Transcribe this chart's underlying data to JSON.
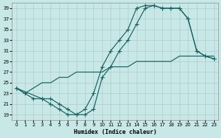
{
  "xlabel": "Humidex (Indice chaleur)",
  "ylabel": "",
  "bg_color": "#c8e8e8",
  "grid_color": "#b0c8c8",
  "line_color": "#1a6060",
  "xlim": [
    -0.5,
    23.5
  ],
  "ylim": [
    18,
    40
  ],
  "yticks": [
    19,
    21,
    23,
    25,
    27,
    29,
    31,
    33,
    35,
    37,
    39
  ],
  "xticks": [
    0,
    1,
    2,
    3,
    4,
    5,
    6,
    7,
    8,
    9,
    10,
    11,
    12,
    13,
    14,
    15,
    16,
    17,
    18,
    19,
    20,
    21,
    22,
    23
  ],
  "line1_x": [
    0,
    1,
    2,
    3,
    4,
    5,
    6,
    7,
    8,
    9,
    10,
    11,
    12,
    13,
    14,
    15,
    16,
    17,
    18,
    19,
    20,
    21,
    22,
    23
  ],
  "line1_y": [
    24,
    23,
    22,
    22,
    21,
    20,
    19,
    19,
    20,
    23,
    28,
    31,
    33,
    35,
    39,
    39.5,
    39.5,
    39,
    39,
    39,
    37,
    31,
    30,
    29.5
  ],
  "line2_x": [
    0,
    3,
    4,
    5,
    6,
    7,
    8,
    9,
    10,
    11,
    12,
    13,
    14,
    15,
    16,
    17,
    18,
    19,
    20,
    21,
    22,
    23
  ],
  "line2_y": [
    24,
    22,
    22,
    21,
    20,
    19,
    19,
    20,
    26,
    28,
    31,
    33,
    36,
    39,
    39.5,
    39,
    39,
    39,
    37,
    31,
    30,
    29.5
  ],
  "line3_x": [
    0,
    1,
    2,
    3,
    4,
    5,
    6,
    7,
    8,
    9,
    10,
    11,
    12,
    13,
    14,
    15,
    16,
    17,
    18,
    19,
    20,
    21,
    22,
    23
  ],
  "line3_y": [
    24,
    23,
    24,
    25,
    25,
    26,
    26,
    27,
    27,
    27,
    27,
    28,
    28,
    28,
    29,
    29,
    29,
    29,
    29,
    30,
    30,
    30,
    30,
    30
  ]
}
